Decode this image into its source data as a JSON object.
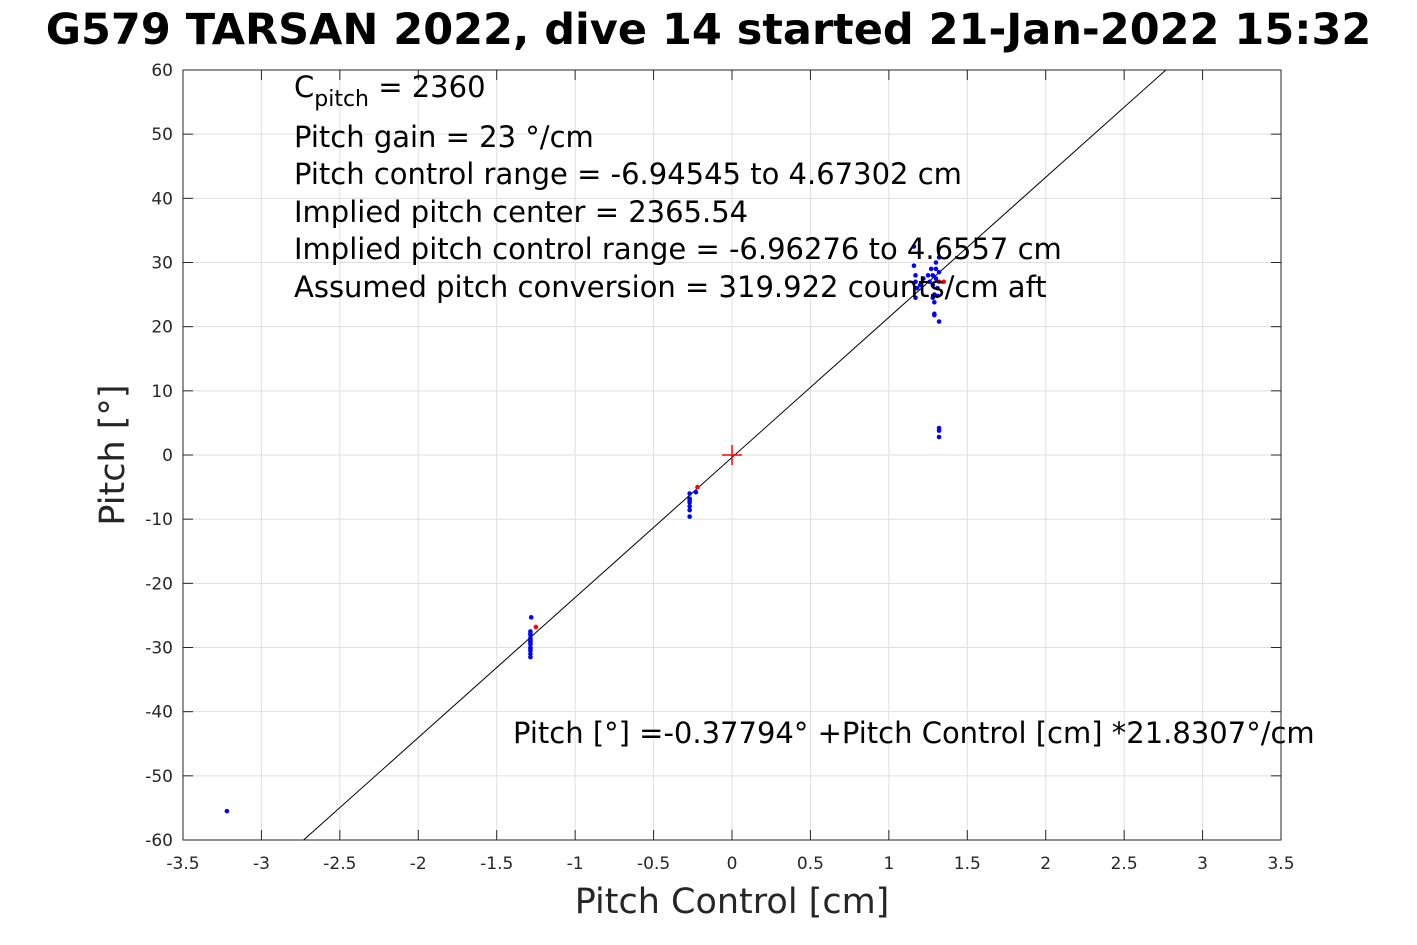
{
  "title": "G579 TARSAN 2022, dive 14 started 21-Jan-2022 15:32",
  "chart_data": {
    "type": "scatter",
    "title": "G579 TARSAN 2022, dive 14 started 21-Jan-2022 15:32",
    "xlabel": "Pitch Control [cm]",
    "ylabel": "Pitch [°]",
    "xlim": [
      -3.5,
      3.5
    ],
    "ylim": [
      -60,
      60
    ],
    "xticks": [
      -3.5,
      -3,
      -2.5,
      -2,
      -1.5,
      -1,
      -0.5,
      0,
      0.5,
      1,
      1.5,
      2,
      2.5,
      3,
      3.5
    ],
    "yticks": [
      -60,
      -50,
      -40,
      -30,
      -20,
      -10,
      0,
      10,
      20,
      30,
      40,
      50,
      60
    ],
    "grid": true,
    "series": [
      {
        "color": "#0000ff",
        "x": [
          -3.22,
          -1.285,
          -1.285,
          -1.285,
          -1.285,
          -1.285,
          -1.285,
          -1.285,
          -1.285,
          -1.285,
          -1.285,
          -1.285,
          -1.285,
          -1.285,
          -1.28,
          -0.27,
          -0.27,
          -0.27,
          -0.27,
          -0.27,
          -0.27,
          -0.27,
          -0.23,
          1.16,
          1.16,
          1.17,
          1.17,
          1.17,
          1.18,
          1.2,
          1.22,
          1.25,
          1.26,
          1.27,
          1.28,
          1.28,
          1.29,
          1.29,
          1.29,
          1.3,
          1.3,
          1.31,
          1.31,
          1.32,
          1.32,
          1.32,
          1.32,
          1.32,
          1.28,
          1.3,
          1.29,
          1.32
        ],
        "y": [
          -55.5,
          -27.5,
          -28,
          -28.5,
          -29,
          -29.5,
          -30,
          -30.5,
          -31,
          -31.5,
          -29.2,
          -28.8,
          -30.2,
          -27.8,
          -25.3,
          -6,
          -6.8,
          -7.4,
          -8,
          -8.6,
          -9.6,
          -7.1,
          -5.8,
          32.5,
          29.5,
          28,
          27,
          24.5,
          26,
          26.5,
          27.5,
          28,
          27,
          29,
          28,
          26.5,
          25,
          23.8,
          22,
          30,
          27.5,
          26,
          24.8,
          30.8,
          20.8,
          4.2,
          3.8,
          2.8,
          24.5,
          29,
          21.8,
          28.5
        ]
      },
      {
        "color": "#ff0000",
        "x": [
          -1.25,
          -0.22,
          1.32,
          1.35
        ],
        "y": [
          -26.8,
          -5,
          27,
          27
        ]
      }
    ],
    "center_marker": {
      "x": 0,
      "y": 0,
      "color": "#ff0000",
      "shape": "plus"
    },
    "fit_line": {
      "intercept": -0.37794,
      "slope": 21.8307,
      "color": "#000000"
    },
    "annotations": {
      "cpitch_base": "C",
      "cpitch_sub": "pitch",
      "cpitch_value": " = 2360",
      "pitch_gain": "Pitch gain = 23 °/cm",
      "control_range": "Pitch control range = -6.94545 to 4.67302 cm",
      "implied_center": "Implied pitch center = 2365.54",
      "implied_range": "Implied pitch control range = -6.96276 to 4.6557 cm",
      "conversion": "Assumed pitch conversion = 319.922 counts/cm aft",
      "fit_equation": "Pitch [°] =-0.37794° +Pitch Control [cm] *21.8307°/cm"
    }
  }
}
